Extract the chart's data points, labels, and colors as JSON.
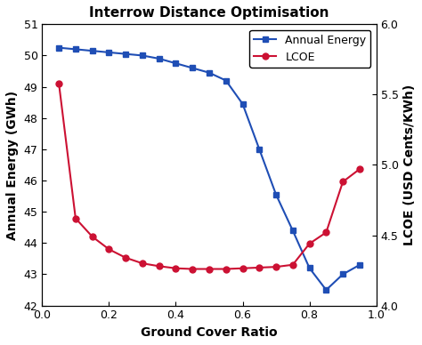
{
  "title": "Interrow Distance Optimisation",
  "xlabel": "Ground Cover Ratio",
  "ylabel_left": "Annual Energy (GWh)",
  "ylabel_right": "LCOE (USD Cents/KWh)",
  "gcr": [
    0.05,
    0.1,
    0.15,
    0.2,
    0.25,
    0.3,
    0.35,
    0.4,
    0.45,
    0.5,
    0.55,
    0.6,
    0.65,
    0.7,
    0.75,
    0.8,
    0.85,
    0.9,
    0.95
  ],
  "annual_energy": [
    50.25,
    50.2,
    50.15,
    50.1,
    50.05,
    50.0,
    49.9,
    49.75,
    49.6,
    49.45,
    49.2,
    48.45,
    47.0,
    45.55,
    44.4,
    43.2,
    42.5,
    43.0,
    43.3
  ],
  "lcoe": [
    5.58,
    4.62,
    4.49,
    4.4,
    4.34,
    4.3,
    4.28,
    4.265,
    4.26,
    4.26,
    4.26,
    4.265,
    4.27,
    4.275,
    4.29,
    4.44,
    4.52,
    4.88,
    4.97
  ],
  "energy_color": "#1f4eb5",
  "lcoe_color": "#cc1133",
  "xlim": [
    0.0,
    1.0
  ],
  "ylim_left": [
    42,
    51
  ],
  "ylim_right": [
    4.0,
    6.0
  ],
  "yticks_left": [
    42,
    43,
    44,
    45,
    46,
    47,
    48,
    49,
    50,
    51
  ],
  "yticks_right": [
    4.0,
    4.5,
    5.0,
    5.5,
    6.0
  ],
  "xticks": [
    0.0,
    0.2,
    0.4,
    0.6,
    0.8,
    1.0
  ],
  "legend_loc": "upper right",
  "figsize": [
    4.74,
    3.88
  ],
  "dpi": 100
}
